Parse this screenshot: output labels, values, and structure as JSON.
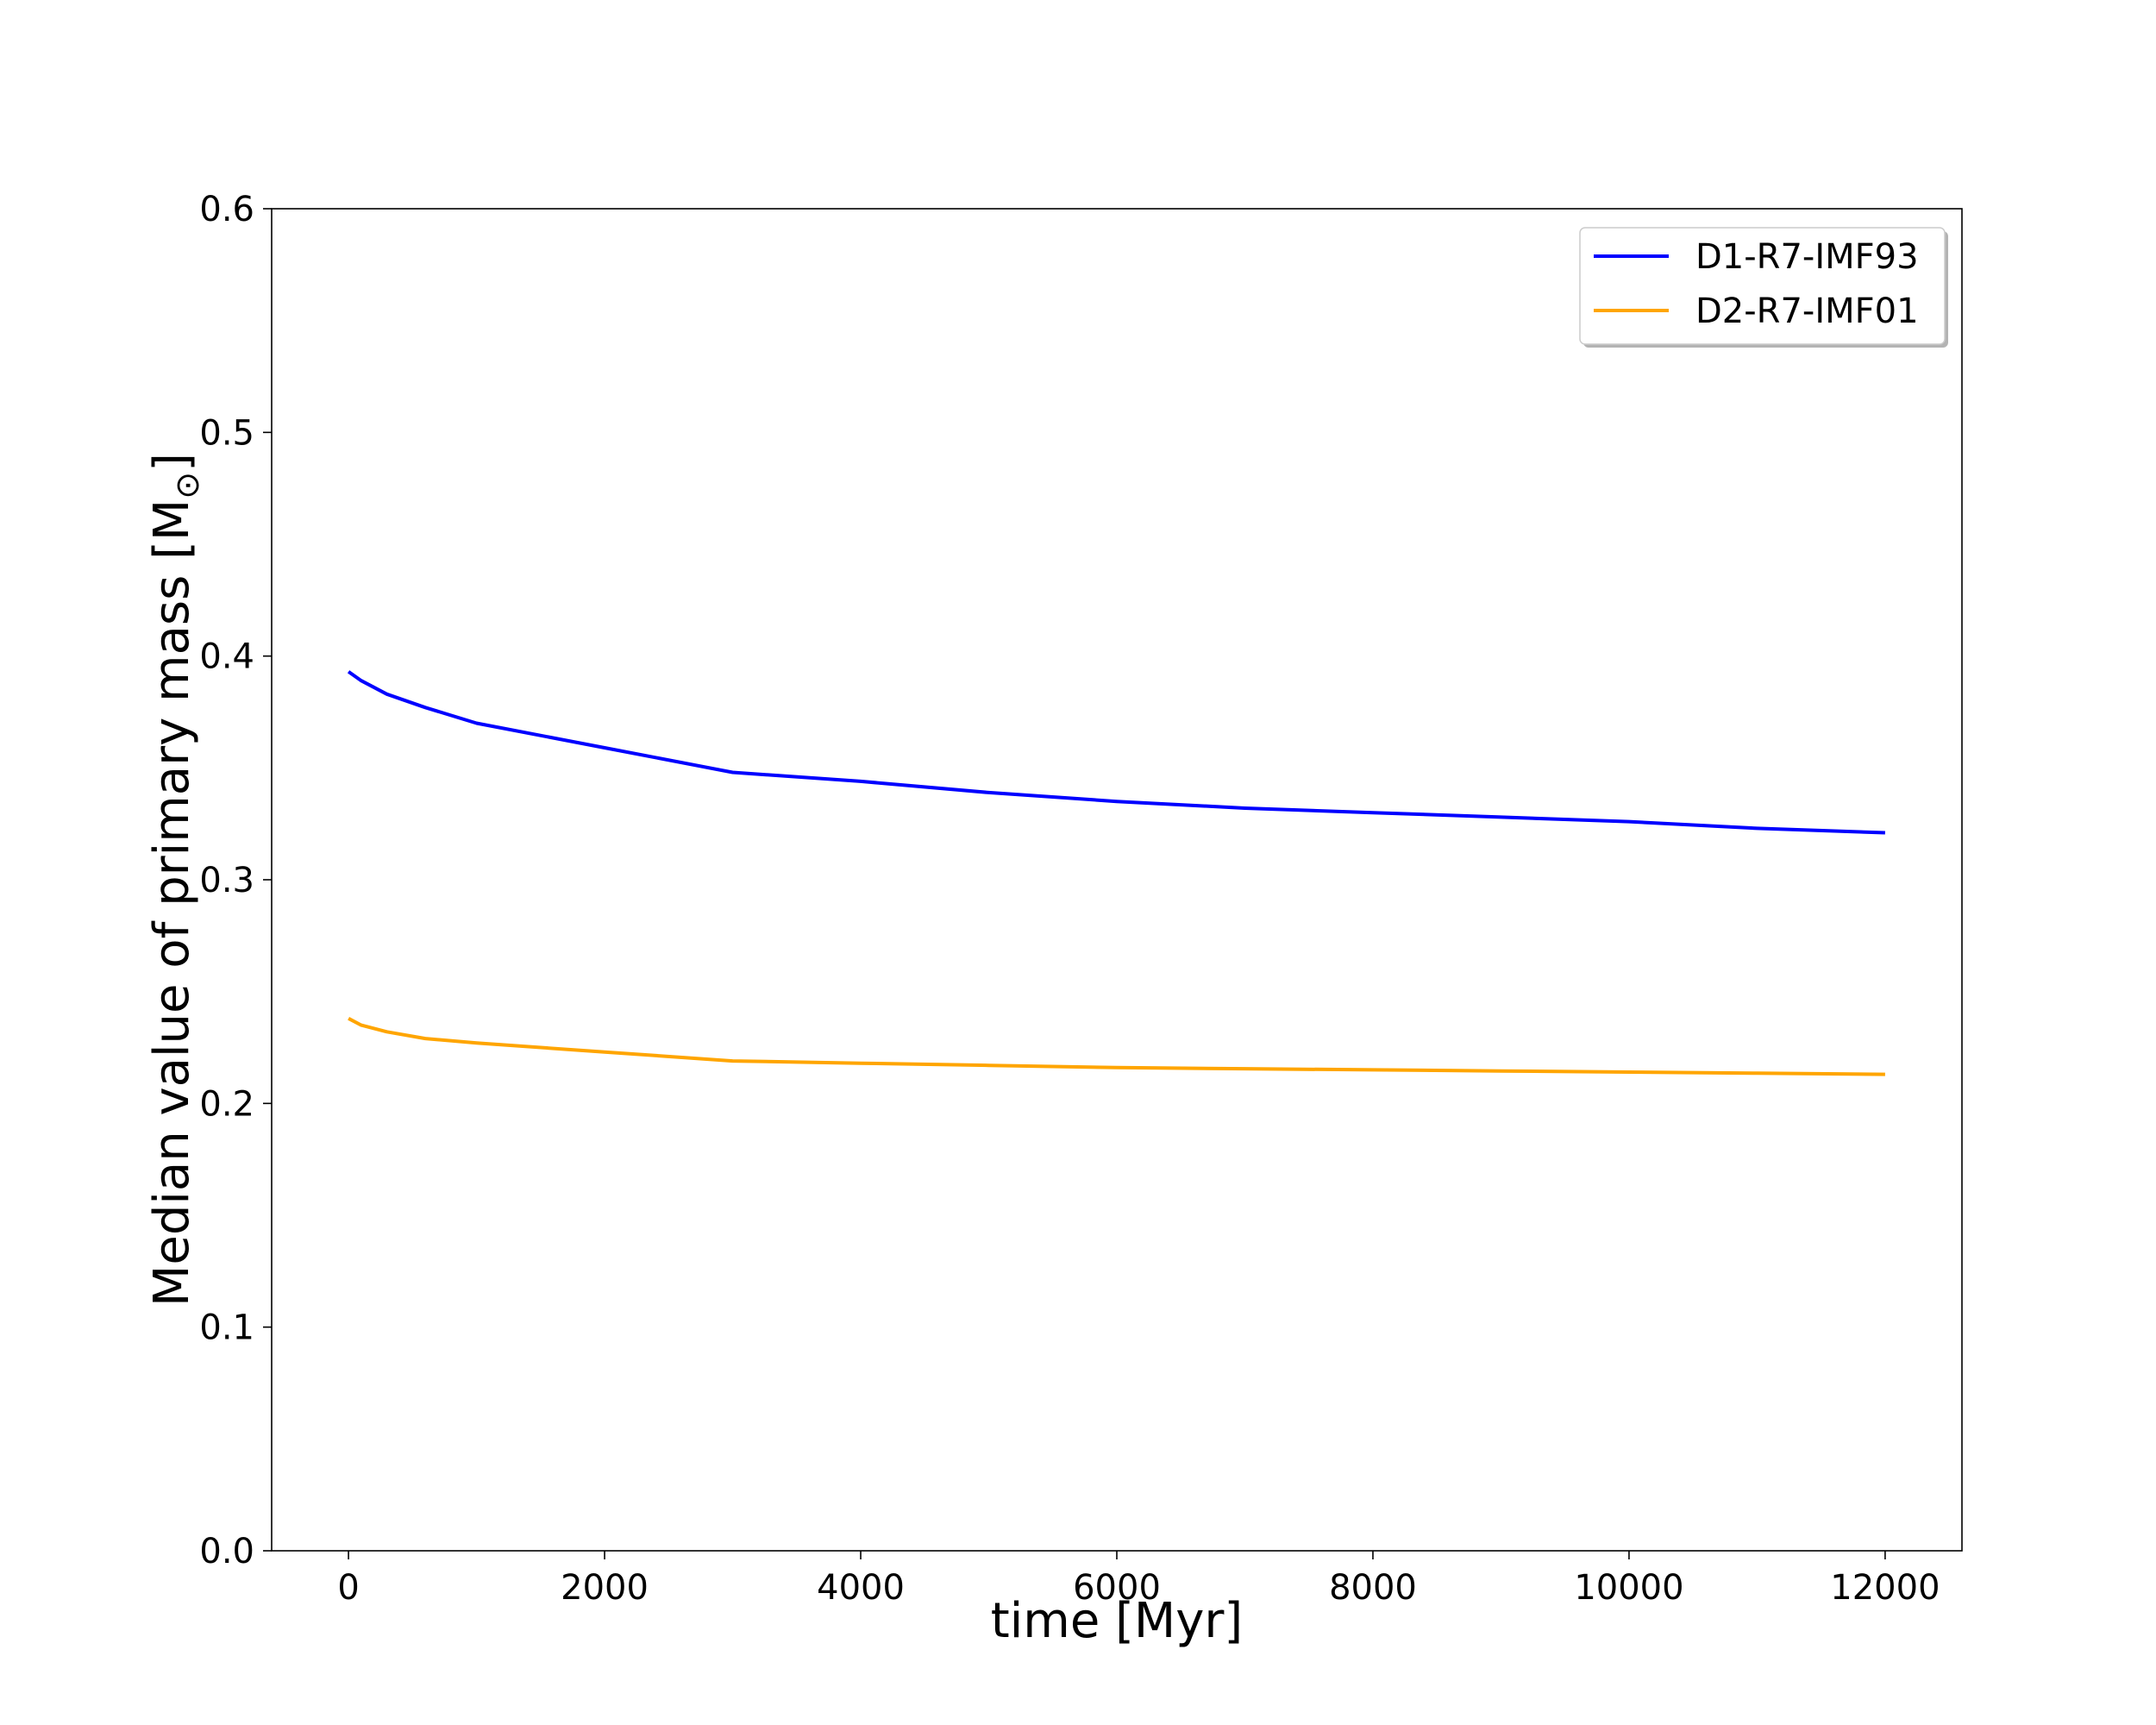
{
  "chart_data": {
    "type": "line",
    "title": "",
    "xlabel": "time [Myr]",
    "ylabel_main": "Median value of primary mass [M",
    "ylabel_sub": "⊙",
    "ylabel_end": "]",
    "xlim": [
      -600,
      12600
    ],
    "ylim": [
      0.0,
      0.6
    ],
    "xticks": [
      0,
      2000,
      4000,
      6000,
      8000,
      10000,
      12000
    ],
    "xtick_labels": [
      "0",
      "2000",
      "4000",
      "6000",
      "8000",
      "10000",
      "12000"
    ],
    "yticks": [
      0.0,
      0.1,
      0.2,
      0.3,
      0.4,
      0.5,
      0.6
    ],
    "ytick_labels": [
      "0.0",
      "0.1",
      "0.2",
      "0.3",
      "0.4",
      "0.5",
      "0.6"
    ],
    "grid": false,
    "legend_position": "top-right",
    "series": [
      {
        "name": "D1-R7-IMF93",
        "color": "#0000ff",
        "x": [
          0,
          100,
          300,
          600,
          1000,
          2000,
          3000,
          4000,
          5000,
          6000,
          7000,
          8000,
          9000,
          10000,
          11000,
          12000
        ],
        "y": [
          0.393,
          0.389,
          0.383,
          0.377,
          0.37,
          0.359,
          0.348,
          0.344,
          0.339,
          0.335,
          0.332,
          0.33,
          0.328,
          0.326,
          0.323,
          0.321
        ]
      },
      {
        "name": "D2-R7-IMF01",
        "color": "#ffa500",
        "x": [
          0,
          100,
          300,
          600,
          1000,
          2000,
          3000,
          4000,
          5000,
          6000,
          7000,
          8000,
          9000,
          10000,
          11000,
          12000
        ],
        "y": [
          0.238,
          0.235,
          0.232,
          0.229,
          0.227,
          0.223,
          0.219,
          0.218,
          0.217,
          0.216,
          0.2155,
          0.215,
          0.2145,
          0.214,
          0.2135,
          0.213
        ]
      }
    ]
  }
}
